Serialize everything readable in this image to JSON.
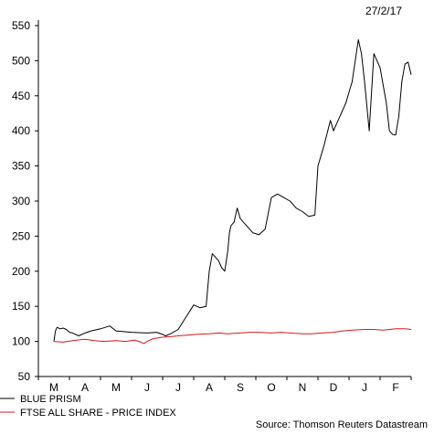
{
  "chart_data": {
    "type": "line",
    "date_label": "27/2/17",
    "source": "Source: Thomson Reuters Datastream",
    "ylim": [
      50,
      550
    ],
    "yticks": [
      50,
      100,
      150,
      200,
      250,
      300,
      350,
      400,
      450,
      500,
      550
    ],
    "x_months": [
      "M",
      "A",
      "M",
      "J",
      "J",
      "A",
      "S",
      "O",
      "N",
      "D",
      "J",
      "F"
    ],
    "grid": false,
    "legend_position": "bottom-left",
    "series": [
      {
        "name": "BLUE PRISM",
        "color": "#000000",
        "x": [
          0,
          0.05,
          0.1,
          0.2,
          0.3,
          0.4,
          0.5,
          0.6,
          0.8,
          1.0,
          1.2,
          1.5,
          1.8,
          2.0,
          2.5,
          3.0,
          3.3,
          3.5,
          3.6,
          3.8,
          4.0,
          4.3,
          4.5,
          4.7,
          4.9,
          5.0,
          5.1,
          5.2,
          5.3,
          5.4,
          5.5,
          5.6,
          5.65,
          5.7,
          5.8,
          5.9,
          6.0,
          6.2,
          6.4,
          6.6,
          6.8,
          7.0,
          7.2,
          7.4,
          7.6,
          7.8,
          8.0,
          8.2,
          8.4,
          8.5,
          8.7,
          8.9,
          9.0,
          9.2,
          9.4,
          9.6,
          9.7,
          9.8,
          9.9,
          10.0,
          10.15,
          10.3,
          10.5,
          10.7,
          10.8,
          10.9,
          11.0,
          11.1,
          11.2,
          11.3,
          11.4,
          11.5
        ],
        "values": [
          100,
          115,
          120,
          118,
          119,
          117,
          113,
          112,
          108,
          112,
          115,
          118,
          122,
          115,
          113,
          112,
          113,
          110,
          108,
          112,
          117,
          138,
          152,
          148,
          150,
          200,
          225,
          220,
          215,
          205,
          200,
          230,
          255,
          265,
          270,
          290,
          275,
          265,
          255,
          252,
          260,
          305,
          310,
          305,
          300,
          290,
          285,
          278,
          280,
          350,
          380,
          415,
          400,
          420,
          440,
          470,
          500,
          530,
          510,
          470,
          400,
          510,
          490,
          440,
          400,
          395,
          394,
          420,
          470,
          495,
          498,
          480
        ]
      },
      {
        "name": "FTSE ALL SHARE - PRICE INDEX",
        "color": "#d6191b",
        "x": [
          0,
          0.3,
          0.6,
          1.0,
          1.3,
          1.6,
          2.0,
          2.3,
          2.6,
          2.8,
          2.9,
          3.0,
          3.2,
          3.5,
          3.8,
          4.0,
          4.3,
          4.6,
          5.0,
          5.3,
          5.6,
          6.0,
          6.3,
          6.6,
          7.0,
          7.3,
          7.6,
          8.0,
          8.3,
          8.6,
          9.0,
          9.3,
          9.6,
          10.0,
          10.3,
          10.6,
          11.0,
          11.3,
          11.5
        ],
        "values": [
          100,
          99,
          101,
          103,
          101,
          100,
          101,
          100,
          102,
          99,
          97,
          100,
          104,
          106,
          107,
          108,
          109,
          110,
          111,
          112,
          111,
          112,
          113,
          113,
          112,
          113,
          112,
          111,
          111,
          112,
          113,
          115,
          116,
          117,
          117,
          116,
          118,
          118,
          117
        ]
      }
    ]
  }
}
